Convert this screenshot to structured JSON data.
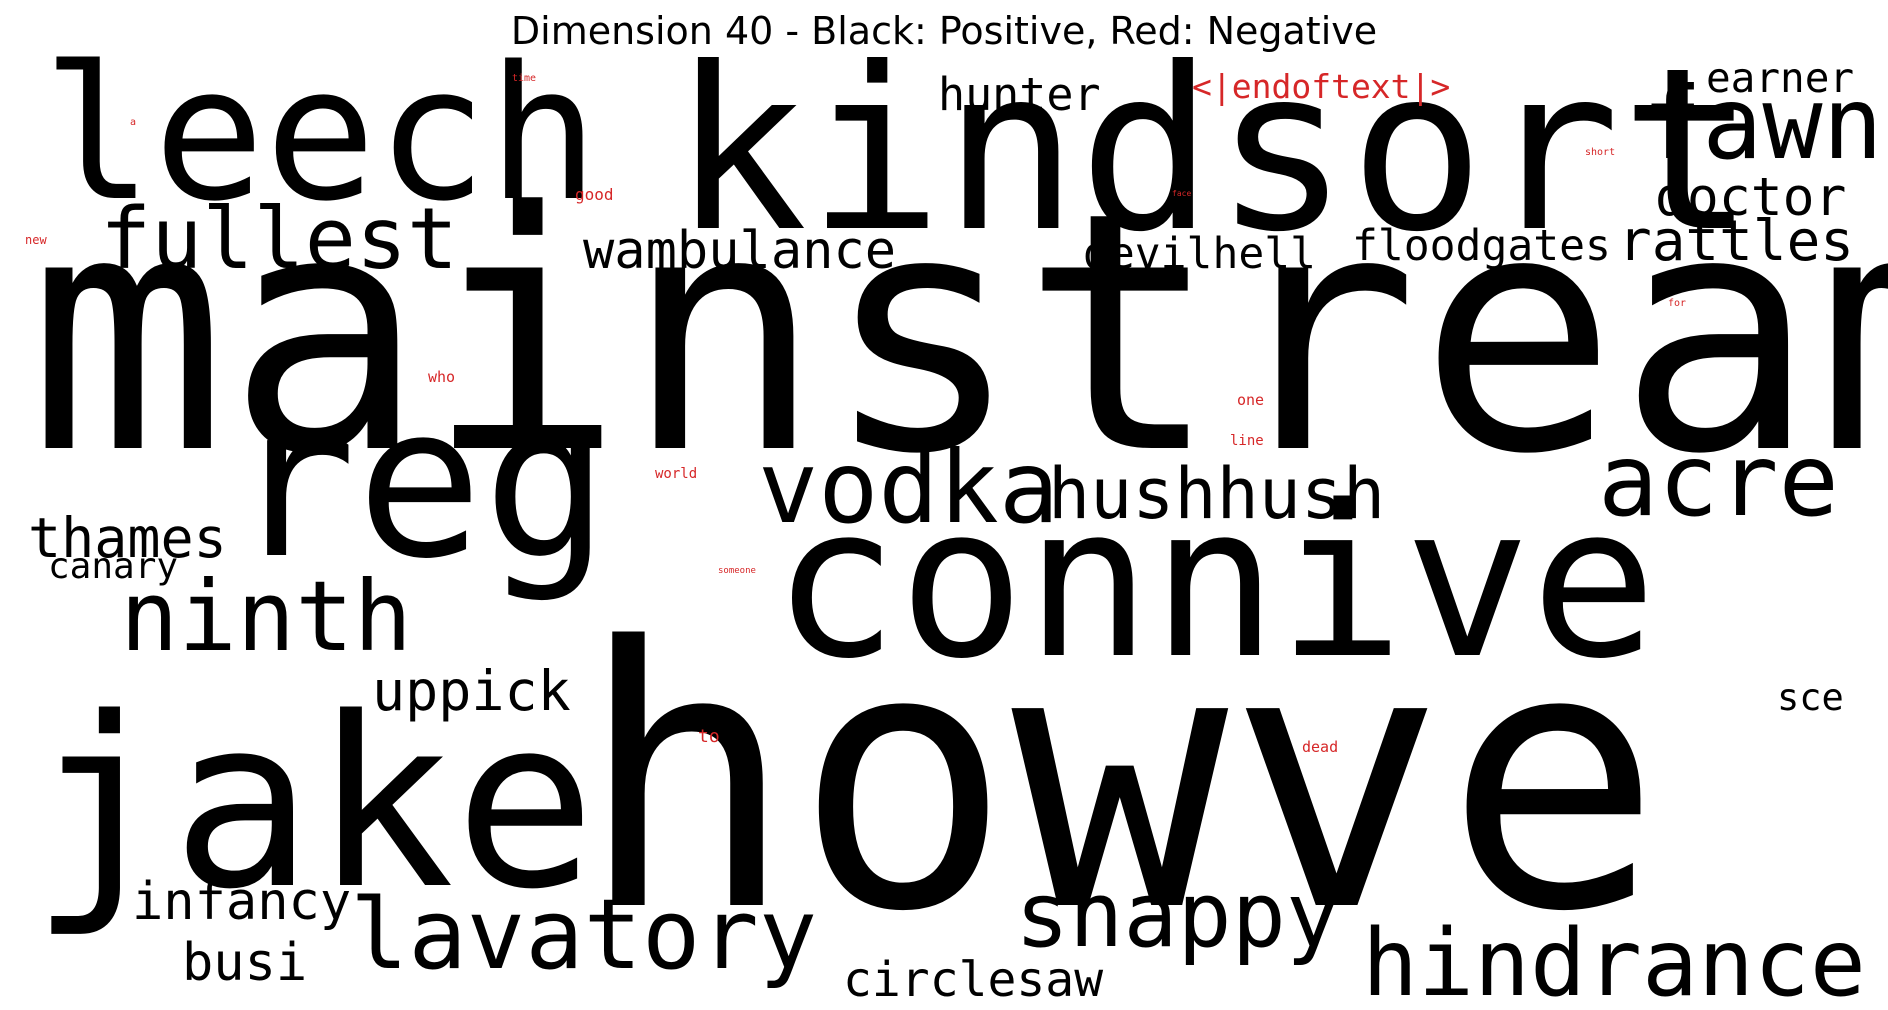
{
  "title": "Dimension 40 - Black: Positive, Red: Negative",
  "colors": {
    "positive": "#000000",
    "negative": "#d62728"
  },
  "words": [
    {
      "text": "mainstream",
      "sign": "positive",
      "weight": 1.0
    },
    {
      "text": "howve",
      "sign": "positive",
      "weight": 0.96
    },
    {
      "text": "kindsort",
      "sign": "positive",
      "weight": 0.62
    },
    {
      "text": "connive",
      "sign": "positive",
      "weight": 0.55
    },
    {
      "text": "jake",
      "sign": "positive",
      "weight": 0.55
    },
    {
      "text": "reg",
      "sign": "positive",
      "weight": 0.5
    },
    {
      "text": "leech",
      "sign": "positive",
      "weight": 0.48
    },
    {
      "text": "vodka",
      "sign": "positive",
      "weight": 0.3
    },
    {
      "text": "acre",
      "sign": "positive",
      "weight": 0.29
    },
    {
      "text": "fawn",
      "sign": "positive",
      "weight": 0.27
    },
    {
      "text": "ninth",
      "sign": "positive",
      "weight": 0.26
    },
    {
      "text": "lavatory",
      "sign": "positive",
      "weight": 0.26
    },
    {
      "text": "hindrance",
      "sign": "positive",
      "weight": 0.24
    },
    {
      "text": "snappy",
      "sign": "positive",
      "weight": 0.23
    },
    {
      "text": "fullest",
      "sign": "positive",
      "weight": 0.22
    },
    {
      "text": "hushhush",
      "sign": "positive",
      "weight": 0.2
    },
    {
      "text": "doctor",
      "sign": "positive",
      "weight": 0.15
    },
    {
      "text": "rattles",
      "sign": "positive",
      "weight": 0.15
    },
    {
      "text": "uppick",
      "sign": "positive",
      "weight": 0.15
    },
    {
      "text": "thames",
      "sign": "positive",
      "weight": 0.15
    },
    {
      "text": "infancy",
      "sign": "positive",
      "weight": 0.14
    },
    {
      "text": "busi",
      "sign": "positive",
      "weight": 0.14
    },
    {
      "text": "wambulance",
      "sign": "positive",
      "weight": 0.14
    },
    {
      "text": "circlesaw",
      "sign": "positive",
      "weight": 0.13
    },
    {
      "text": "hunter",
      "sign": "positive",
      "weight": 0.12
    },
    {
      "text": "devilhell",
      "sign": "positive",
      "weight": 0.12
    },
    {
      "text": "floodgates",
      "sign": "positive",
      "weight": 0.12
    },
    {
      "text": "earner",
      "sign": "positive",
      "weight": 0.11
    },
    {
      "text": "canary",
      "sign": "positive",
      "weight": 0.1
    },
    {
      "text": "sce",
      "sign": "positive",
      "weight": 0.1
    },
    {
      "text": "<|endoftext|>",
      "sign": "negative",
      "weight": 0.1
    },
    {
      "text": "good",
      "sign": "negative",
      "weight": 0.03
    },
    {
      "text": "to",
      "sign": "negative",
      "weight": 0.03
    },
    {
      "text": "one",
      "sign": "negative",
      "weight": 0.025
    },
    {
      "text": "who",
      "sign": "negative",
      "weight": 0.025
    },
    {
      "text": "dead",
      "sign": "negative",
      "weight": 0.025
    },
    {
      "text": "line",
      "sign": "negative",
      "weight": 0.025
    },
    {
      "text": "world",
      "sign": "negative",
      "weight": 0.025
    },
    {
      "text": "new",
      "sign": "negative",
      "weight": 0.02
    },
    {
      "text": "time",
      "sign": "negative",
      "weight": 0.015
    },
    {
      "text": "short",
      "sign": "negative",
      "weight": 0.015
    },
    {
      "text": "for",
      "sign": "negative",
      "weight": 0.015
    },
    {
      "text": "someone",
      "sign": "negative",
      "weight": 0.015
    },
    {
      "text": "a",
      "sign": "negative",
      "weight": 0.015
    },
    {
      "text": "face",
      "sign": "negative",
      "weight": 0.012
    }
  ]
}
